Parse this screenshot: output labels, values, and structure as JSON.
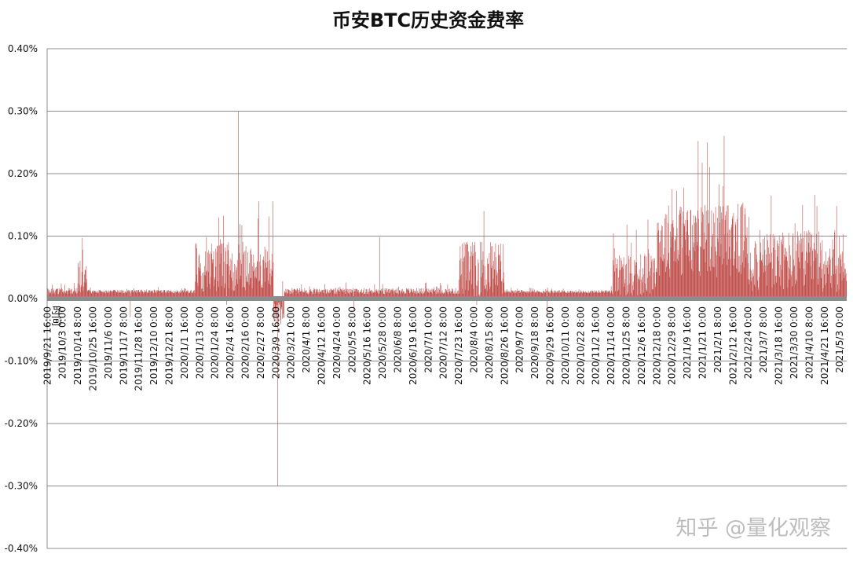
{
  "chart_data": {
    "type": "bar",
    "title": "币安BTC历史资金费率",
    "xlabel": "时间",
    "ylabel": "",
    "ylim": [
      -0.004,
      0.004
    ],
    "y_tick_labels": [
      "0.40%",
      "0.30%",
      "0.20%",
      "0.10%",
      "0.00%",
      "-0.10%",
      "-0.20%",
      "-0.30%",
      "-0.40%"
    ],
    "y_tick_values": [
      0.004,
      0.003,
      0.002,
      0.001,
      0.0,
      -0.001,
      -0.002,
      -0.003,
      -0.004
    ],
    "grid": true,
    "bar_color": "#c0504d",
    "x_tick_labels": [
      "2019/9/21 16:00",
      "2019/10/3 0:00",
      "2019/10/14 8:00",
      "2019/10/25 16:00",
      "2019/11/6 0:00",
      "2019/11/17 8:00",
      "2019/11/28 16:00",
      "2019/12/10 0:00",
      "2019/12/21 8:00",
      "2020/1/1 16:00",
      "2020/1/13 0:00",
      "2020/1/24 8:00",
      "2020/2/4 16:00",
      "2020/2/16 0:00",
      "2020/2/27 8:00",
      "2020/3/9 16:00",
      "2020/3/21 0:00",
      "2020/4/1 8:00",
      "2020/4/12 16:00",
      "2020/4/24 0:00",
      "2020/5/5 8:00",
      "2020/5/16 16:00",
      "2020/5/28 0:00",
      "2020/6/8 8:00",
      "2020/6/19 16:00",
      "2020/7/1 0:00",
      "2020/7/12 8:00",
      "2020/7/23 16:00",
      "2020/8/4 0:00",
      "2020/8/15 8:00",
      "2020/8/26 16:00",
      "2020/9/7 0:00",
      "2020/9/18 8:00",
      "2020/9/29 16:00",
      "2020/10/11 0:00",
      "2020/10/22 8:00",
      "2020/11/2 16:00",
      "2020/11/14 0:00",
      "2020/11/25 8:00",
      "2020/12/6 16:00",
      "2020/12/18 0:00",
      "2020/12/29 8:00",
      "2021/1/9 16:00",
      "2021/1/21 0:00",
      "2021/2/1 8:00",
      "2021/2/12 16:00",
      "2021/2/24 0:00",
      "2021/3/7 8:00",
      "2021/3/18 16:00",
      "2021/3/30 0:00",
      "2021/4/10 8:00",
      "2021/4/21 16:00",
      "2021/5/3 0:00"
    ],
    "x_tick_positions": [
      0,
      34,
      68,
      102,
      136,
      170,
      204,
      238,
      272,
      306,
      340,
      374,
      408,
      442,
      476,
      510,
      544,
      578,
      612,
      646,
      680,
      714,
      748,
      782,
      816,
      850,
      884,
      918,
      952,
      986,
      1020,
      1054,
      1088,
      1122,
      1156,
      1190,
      1224,
      1258,
      1292,
      1326,
      1360,
      1394,
      1428,
      1462,
      1496,
      1530,
      1564,
      1598,
      1632,
      1666,
      1700,
      1734,
      1768
    ],
    "count": 1784,
    "x_ticks_index_step": 34,
    "segments": [
      {
        "label": "2019/9/21 16:00 – 2019/10/25 16:00",
        "typical": 0.0001
      },
      {
        "label": "2019/10/25 16:00 – 2019/11/6 0:00",
        "typical": 0.0003,
        "peak": 0.00078
      },
      {
        "label": "2019/11/6 0:00 – 2020/1/13 0:00",
        "typical": 0.0001,
        "min": -0.0003
      },
      {
        "label": "2020/1/13 0:00 – 2020/3/9 16:00",
        "typical": 0.0004,
        "peak": 0.003
      },
      {
        "label": "2020/3/9 16:00 – 2020/3/21 0:00",
        "typical": -0.0004,
        "min": -0.003
      },
      {
        "label": "2020/3/21 0:00 – 2020/7/23 16:00",
        "typical": 0.0001,
        "peak": 0.00098
      },
      {
        "label": "2020/7/23 16:00 – 2020/8/26 16:00",
        "typical": 0.0004,
        "peak": 0.0014
      },
      {
        "label": "2020/8/26 16:00 – 2020/11/14 0:00",
        "typical": 0.0001,
        "min": -0.0003
      },
      {
        "label": "2020/11/14 0:00 – 2020/12/18 0:00",
        "typical": 0.0003,
        "peak": 0.0011
      },
      {
        "label": "2020/12/18 0:00 – 2021/2/24 0:00",
        "typical": 0.0008,
        "peak": 0.0025
      },
      {
        "label": "2021/2/24 0:00 – 2021/5/3 0:00",
        "typical": 0.0005,
        "peak": 0.0015
      }
    ]
  },
  "watermark": "知乎 @量化观察"
}
